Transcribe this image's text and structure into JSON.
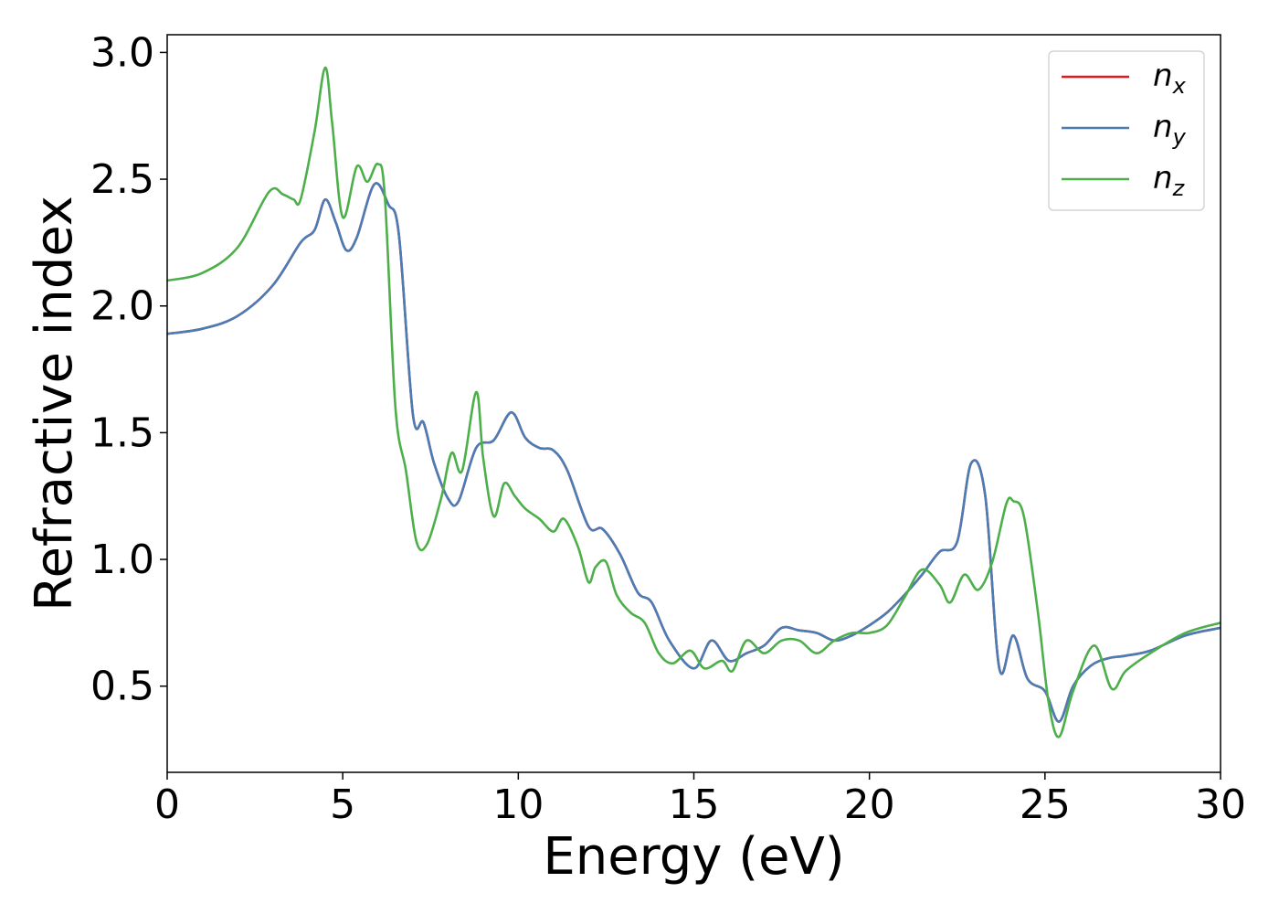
{
  "chart_data": {
    "type": "line",
    "xlabel": "Energy (eV)",
    "ylabel": "Refractive index",
    "xlim": [
      0,
      30
    ],
    "ylim": [
      0.16,
      3.07
    ],
    "xticks": [
      0,
      5,
      10,
      15,
      20,
      25,
      30
    ],
    "xtick_labels": [
      "0",
      "5",
      "10",
      "15",
      "20",
      "25",
      "30"
    ],
    "yticks": [
      0.5,
      1.0,
      1.5,
      2.0,
      2.5,
      3.0
    ],
    "ytick_labels": [
      "0.5",
      "1.0",
      "1.5",
      "2.0",
      "2.5",
      "3.0"
    ],
    "grid": false,
    "legend_position": "top-right",
    "series": [
      {
        "name": "n_x",
        "label_base": "n",
        "label_sub": "x",
        "color": "#e41a1c",
        "x": [
          0,
          1,
          2,
          3,
          3.8,
          4.2,
          4.5,
          4.8,
          5.1,
          5.4,
          5.9,
          6.3,
          6.6,
          7.0,
          7.3,
          7.6,
          8.0,
          8.3,
          8.8,
          9.3,
          9.8,
          10.2,
          10.6,
          11.0,
          11.4,
          12.0,
          12.4,
          12.9,
          13.4,
          13.8,
          14.3,
          15.0,
          15.5,
          16.0,
          16.5,
          17.0,
          17.5,
          18.0,
          18.5,
          19.0,
          19.5,
          20.0,
          20.5,
          21.0,
          21.5,
          22.0,
          22.5,
          22.9,
          23.3,
          23.7,
          24.1,
          24.5,
          25.0,
          25.4,
          25.8,
          26.3,
          26.8,
          27.3,
          28.0,
          29.0,
          30.0
        ],
        "values": [
          1.89,
          1.91,
          1.96,
          2.08,
          2.25,
          2.3,
          2.42,
          2.33,
          2.22,
          2.27,
          2.48,
          2.4,
          2.28,
          1.57,
          1.54,
          1.38,
          1.24,
          1.23,
          1.44,
          1.47,
          1.58,
          1.48,
          1.44,
          1.43,
          1.35,
          1.13,
          1.12,
          1.02,
          0.87,
          0.83,
          0.68,
          0.57,
          0.68,
          0.6,
          0.63,
          0.66,
          0.73,
          0.72,
          0.71,
          0.68,
          0.7,
          0.74,
          0.79,
          0.86,
          0.94,
          1.03,
          1.07,
          1.38,
          1.25,
          0.57,
          0.7,
          0.53,
          0.48,
          0.36,
          0.5,
          0.58,
          0.61,
          0.62,
          0.64,
          0.7,
          0.73
        ]
      },
      {
        "name": "n_y",
        "label_base": "n",
        "label_sub": "y",
        "color": "#4a7db5",
        "x": [
          0,
          1,
          2,
          3,
          3.8,
          4.2,
          4.5,
          4.8,
          5.1,
          5.4,
          5.9,
          6.3,
          6.6,
          7.0,
          7.3,
          7.6,
          8.0,
          8.3,
          8.8,
          9.3,
          9.8,
          10.2,
          10.6,
          11.0,
          11.4,
          12.0,
          12.4,
          12.9,
          13.4,
          13.8,
          14.3,
          15.0,
          15.5,
          16.0,
          16.5,
          17.0,
          17.5,
          18.0,
          18.5,
          19.0,
          19.5,
          20.0,
          20.5,
          21.0,
          21.5,
          22.0,
          22.5,
          22.9,
          23.3,
          23.7,
          24.1,
          24.5,
          25.0,
          25.4,
          25.8,
          26.3,
          26.8,
          27.3,
          28.0,
          29.0,
          30.0
        ],
        "values": [
          1.89,
          1.91,
          1.96,
          2.08,
          2.25,
          2.3,
          2.42,
          2.33,
          2.22,
          2.27,
          2.48,
          2.4,
          2.28,
          1.57,
          1.54,
          1.38,
          1.24,
          1.23,
          1.44,
          1.47,
          1.58,
          1.48,
          1.44,
          1.43,
          1.35,
          1.13,
          1.12,
          1.02,
          0.87,
          0.83,
          0.68,
          0.57,
          0.68,
          0.6,
          0.63,
          0.66,
          0.73,
          0.72,
          0.71,
          0.68,
          0.7,
          0.74,
          0.79,
          0.86,
          0.94,
          1.03,
          1.07,
          1.38,
          1.25,
          0.57,
          0.7,
          0.53,
          0.48,
          0.36,
          0.5,
          0.58,
          0.61,
          0.62,
          0.64,
          0.7,
          0.73
        ]
      },
      {
        "name": "n_z",
        "label_base": "n",
        "label_sub": "z",
        "color": "#4daf4a",
        "x": [
          0,
          1,
          2,
          2.9,
          3.3,
          3.6,
          3.8,
          4.2,
          4.5,
          4.7,
          5.0,
          5.4,
          5.7,
          6.0,
          6.2,
          6.5,
          6.8,
          7.1,
          7.4,
          7.8,
          8.1,
          8.4,
          8.8,
          9.0,
          9.3,
          9.6,
          9.9,
          10.2,
          10.6,
          11.0,
          11.3,
          11.7,
          12.0,
          12.2,
          12.5,
          12.8,
          13.2,
          13.6,
          14.0,
          14.4,
          14.9,
          15.3,
          15.8,
          16.1,
          16.5,
          17.0,
          17.5,
          18.0,
          18.5,
          19.0,
          19.5,
          20.0,
          20.5,
          21.0,
          21.5,
          22.0,
          22.3,
          22.7,
          23.1,
          23.5,
          23.9,
          24.1,
          24.4,
          24.8,
          25.1,
          25.4,
          25.8,
          26.4,
          26.9,
          27.3,
          28.0,
          29.0,
          30.0
        ],
        "values": [
          2.1,
          2.13,
          2.23,
          2.45,
          2.44,
          2.42,
          2.42,
          2.69,
          2.94,
          2.72,
          2.35,
          2.55,
          2.49,
          2.56,
          2.43,
          1.6,
          1.35,
          1.07,
          1.06,
          1.24,
          1.42,
          1.35,
          1.66,
          1.4,
          1.17,
          1.3,
          1.25,
          1.2,
          1.16,
          1.11,
          1.16,
          1.05,
          0.91,
          0.97,
          0.99,
          0.86,
          0.79,
          0.75,
          0.63,
          0.59,
          0.64,
          0.57,
          0.6,
          0.56,
          0.68,
          0.63,
          0.68,
          0.68,
          0.63,
          0.68,
          0.71,
          0.71,
          0.74,
          0.85,
          0.96,
          0.9,
          0.83,
          0.94,
          0.88,
          0.99,
          1.22,
          1.23,
          1.17,
          0.79,
          0.44,
          0.3,
          0.48,
          0.66,
          0.49,
          0.56,
          0.63,
          0.71,
          0.75
        ]
      }
    ]
  }
}
